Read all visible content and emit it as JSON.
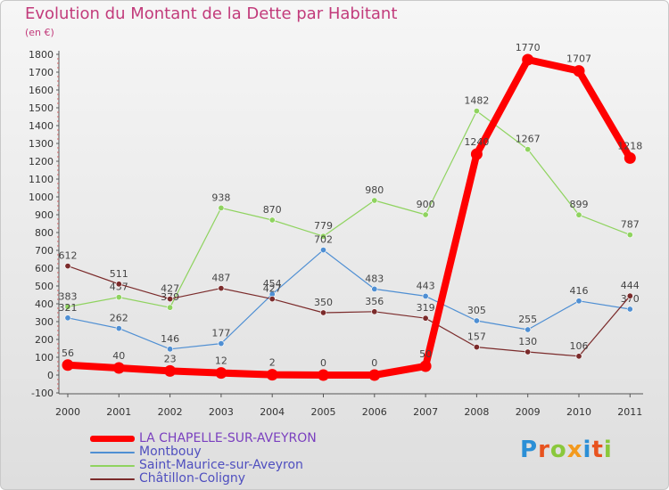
{
  "header": {
    "title": "Evolution du Montant de la Dette par Habitant",
    "subtitle": "(en €)"
  },
  "chart_data": {
    "type": "line",
    "title": "Evolution du Montant de la Dette par Habitant",
    "subtitle": "(en €)",
    "xlabel": "",
    "ylabel": "",
    "categories": [
      "2000",
      "2001",
      "2002",
      "2003",
      "2004",
      "2005",
      "2006",
      "2007",
      "2008",
      "2009",
      "2010",
      "2011"
    ],
    "ylim": [
      -100,
      1800
    ],
    "yticks": [
      -100,
      0,
      100,
      200,
      300,
      400,
      500,
      600,
      700,
      800,
      900,
      1000,
      1100,
      1200,
      1300,
      1400,
      1500,
      1600,
      1700,
      1800
    ],
    "grid": false,
    "legend_position": "bottom-left",
    "series": [
      {
        "name": "Saint-Maurice-sur-Aveyron",
        "color": "#8fd35f",
        "values": [
          383,
          437,
          379,
          938,
          870,
          779,
          980,
          900,
          1482,
          1267,
          899,
          787
        ],
        "labels": [
          "383",
          "437",
          "379",
          "938",
          "870",
          "779",
          "980",
          "900",
          "1482",
          "1267",
          "899",
          "787"
        ]
      },
      {
        "name": "Montbouy",
        "color": "#4f8fd3",
        "values": [
          321,
          262,
          146,
          177,
          454,
          702,
          483,
          443,
          305,
          255,
          416,
          370
        ],
        "labels": [
          "321",
          "262",
          "146",
          "177",
          "454",
          "702",
          "483",
          "443",
          "305",
          "255",
          "416",
          "370"
        ]
      },
      {
        "name": "Châtillon-Coligny",
        "color": "#7b2b2b",
        "values": [
          612,
          511,
          427,
          487,
          427,
          350,
          356,
          319,
          157,
          130,
          106,
          444
        ],
        "labels": [
          "612",
          "511",
          "427",
          "487",
          "427",
          "350",
          "356",
          "319",
          "157",
          "130",
          "106",
          "444"
        ]
      },
      {
        "name": "LA CHAPELLE-SUR-AVEYRON",
        "color": "#ff0000",
        "values": [
          56,
          40,
          23,
          12,
          2,
          0,
          0,
          50,
          1240,
          1770,
          1707,
          1218
        ],
        "labels": [
          "56",
          "40",
          "23",
          "12",
          "2",
          "0",
          "0",
          "50",
          "1240",
          "1770",
          "1707",
          "1218"
        ]
      }
    ]
  },
  "legend": {
    "items": [
      {
        "label": "LA CHAPELLE-SUR-AVEYRON",
        "color": "#ff0000"
      },
      {
        "label": "Montbouy",
        "color": "#4f8fd3"
      },
      {
        "label": "Saint-Maurice-sur-Aveyron",
        "color": "#8fd35f"
      },
      {
        "label": "Châtillon-Coligny",
        "color": "#7b2b2b"
      }
    ]
  },
  "logo": {
    "text": "Proxiti",
    "letter_colors": [
      "#2b8fd6",
      "#e8531f",
      "#8ac83c",
      "#f39a1e",
      "#2b8fd6",
      "#e8531f",
      "#8ac83c"
    ]
  }
}
